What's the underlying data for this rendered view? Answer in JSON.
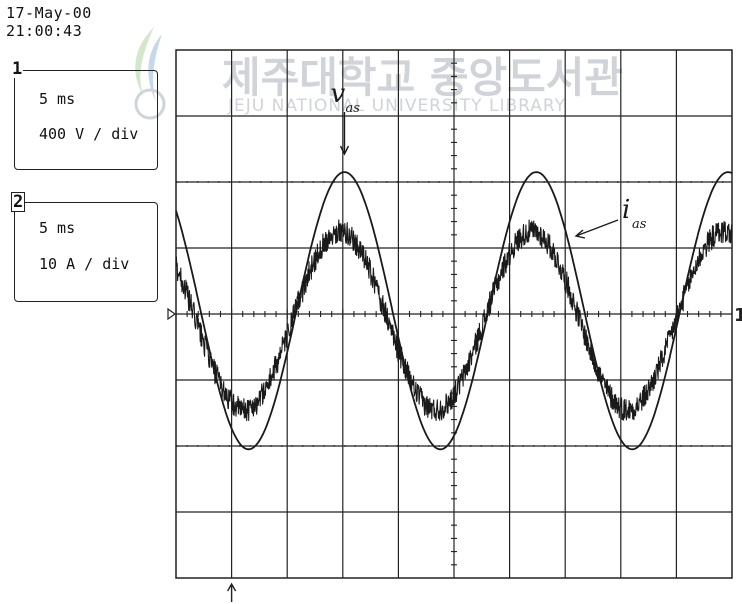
{
  "header": {
    "date": "17-May-00",
    "time": "21:00:43"
  },
  "channels": [
    {
      "number": "1",
      "time_div": "5 ms",
      "volts_div": "400 V / div"
    },
    {
      "number": "2",
      "time_div": "5 ms",
      "volts_div": "10 A / div"
    }
  ],
  "watermark": {
    "title": "제주대학교 중앙도서관",
    "subtitle": "JEJU NATIONAL UNIVERSITY LIBRARY"
  },
  "colors": {
    "trace": "#1a1a1a",
    "grid": "#222222",
    "background": "#ffffff",
    "watermark": "#c8ccd2"
  },
  "markers": {
    "ground_ref_right": "1",
    "trigger_marker": "arrow-up"
  },
  "chart_data": {
    "type": "line",
    "grid": true,
    "x_divisions": 10,
    "y_divisions": 8,
    "xlim_div": [
      0,
      10
    ],
    "ylim_div": [
      -4,
      4
    ],
    "series": [
      {
        "name": "v_as",
        "label_main": "v",
        "label_sub": "as",
        "amplitude_div": 2.1,
        "period_div": 3.45,
        "peak_x_div": 3.03,
        "dc_offset_div": 0.05
      },
      {
        "name": "i_as",
        "label_main": "i",
        "label_sub": "as",
        "amplitude_div": 1.35,
        "period_div": 3.45,
        "peak_x_div": 2.95,
        "dc_offset_div": -0.1,
        "noise_div": 0.18
      }
    ]
  }
}
